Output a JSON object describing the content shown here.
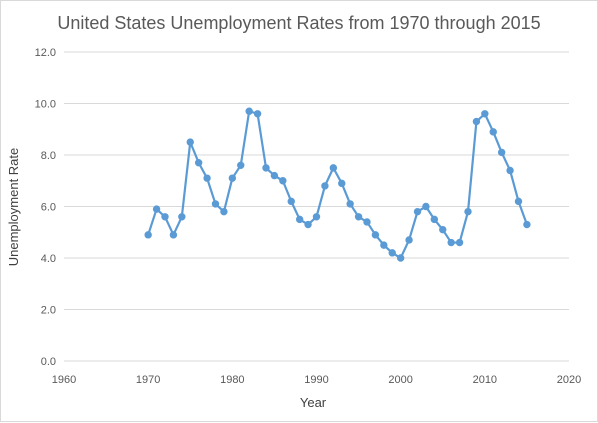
{
  "chart_data": {
    "type": "line",
    "title": "United States Unemployment Rates from 1970 through 2015",
    "xlabel": "Year",
    "ylabel": "Unemployment Rate",
    "xlim": [
      1960,
      2020
    ],
    "ylim": [
      0,
      12
    ],
    "x_ticks": [
      "1960",
      "1970",
      "1980",
      "1990",
      "2000",
      "2010",
      "2020"
    ],
    "y_ticks": [
      "0.0",
      "2.0",
      "4.0",
      "6.0",
      "8.0",
      "10.0",
      "12.0"
    ],
    "grid": "horizontal",
    "legend": "none",
    "color": "#5b9bd5",
    "series": [
      {
        "x": [
          1970,
          1971,
          1972,
          1973,
          1974,
          1975,
          1976,
          1977,
          1978,
          1979,
          1980,
          1981,
          1982,
          1983,
          1984,
          1985,
          1986,
          1987,
          1988,
          1989,
          1990,
          1991,
          1992,
          1993,
          1994,
          1995,
          1996,
          1997,
          1998,
          1999,
          2000,
          2001,
          2002,
          2003,
          2004,
          2005,
          2006,
          2007,
          2008,
          2009,
          2010,
          2011,
          2012,
          2013,
          2014,
          2015
        ],
        "values": [
          4.9,
          5.9,
          5.6,
          4.9,
          5.6,
          8.5,
          7.7,
          7.1,
          6.1,
          5.8,
          7.1,
          7.6,
          9.7,
          9.6,
          7.5,
          7.2,
          7.0,
          6.2,
          5.5,
          5.3,
          5.6,
          6.8,
          7.5,
          6.9,
          6.1,
          5.6,
          5.4,
          4.9,
          4.5,
          4.2,
          4.0,
          4.7,
          5.8,
          6.0,
          5.5,
          5.1,
          4.6,
          4.6,
          5.8,
          9.3,
          9.6,
          8.9,
          8.1,
          7.4,
          6.2,
          5.3
        ]
      }
    ]
  }
}
